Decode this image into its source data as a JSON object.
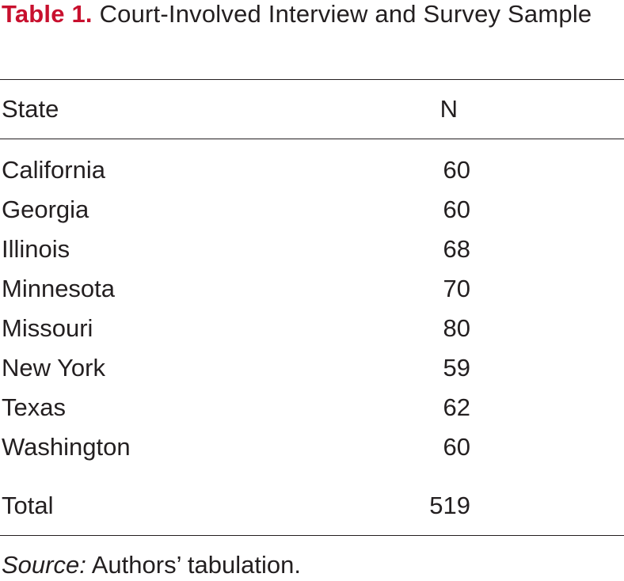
{
  "caption": {
    "label": "Table 1.",
    "title": "Court-Involved Interview and Survey Sample"
  },
  "table": {
    "headers": [
      "State",
      "N"
    ],
    "rows": [
      {
        "state": "California",
        "n": "60"
      },
      {
        "state": "Georgia",
        "n": "60"
      },
      {
        "state": "Illinois",
        "n": "68"
      },
      {
        "state": "Minnesota",
        "n": "70"
      },
      {
        "state": "Missouri",
        "n": "80"
      },
      {
        "state": "New York",
        "n": "59"
      },
      {
        "state": "Texas",
        "n": "62"
      },
      {
        "state": "Washington",
        "n": "60"
      }
    ],
    "total": {
      "label": "Total",
      "n": "519"
    }
  },
  "source": {
    "label": "Source:",
    "text": "Authors’ tabulation."
  },
  "colors": {
    "label_red": "#c8102e",
    "text": "#231f20"
  }
}
